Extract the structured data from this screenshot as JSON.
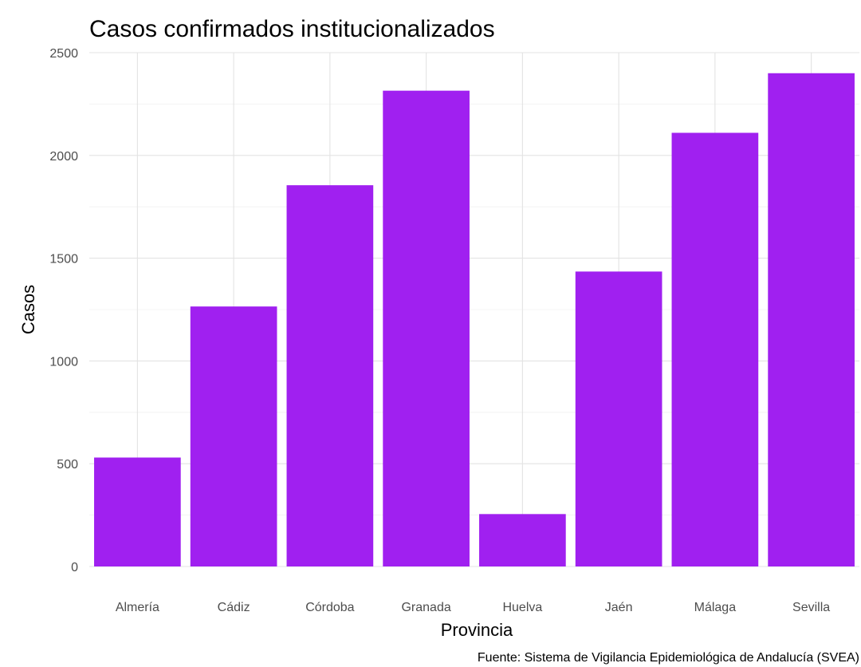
{
  "chart_data": {
    "type": "bar",
    "title": "Casos confirmados institucionalizados",
    "xlabel": "Provincia",
    "ylabel": "Casos",
    "caption": "Fuente: Sistema de Vigilancia Epidemiológica de Andalucía (SVEA)",
    "categories": [
      "Almería",
      "Cádiz",
      "Córdoba",
      "Granada",
      "Huelva",
      "Jaén",
      "Málaga",
      "Sevilla"
    ],
    "values": [
      530,
      1265,
      1855,
      2315,
      255,
      1435,
      2110,
      2400
    ],
    "ylim": [
      0,
      2500
    ],
    "yticks": [
      "0",
      "500",
      "1000",
      "1500",
      "2000",
      "2500"
    ],
    "grid": true,
    "bar_color": "#a020f0"
  }
}
